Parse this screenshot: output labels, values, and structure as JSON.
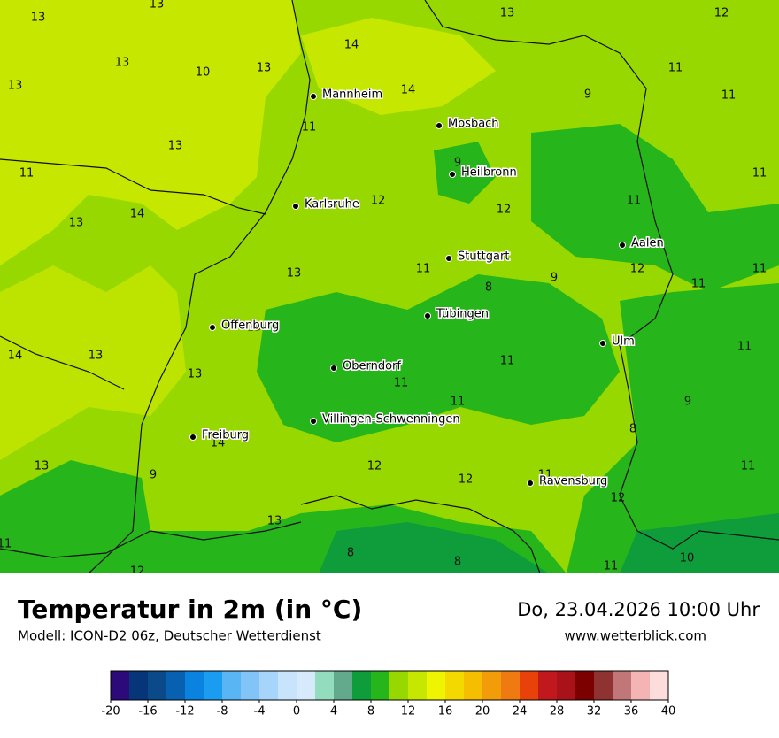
{
  "header": {
    "title": "Temperatur in 2m (in °C)",
    "model": "Modell: ICON-D2 06z, Deutscher Wetterdienst",
    "date": "Do, 23.04.2026 10:00 Uhr",
    "website": "www.wetterblick.com"
  },
  "map": {
    "cities": [
      "Mannheim",
      "Mosbach",
      "Heilbronn",
      "Karlsruhe",
      "Stuttgart",
      "Aalen",
      "Tübingen",
      "Offenburg",
      "Ulm",
      "Oberndorf",
      "Villingen-Schwenningen",
      "Freiburg",
      "Ravensburg"
    ],
    "values": [
      13,
      13,
      13,
      12,
      14,
      13,
      10,
      13,
      14,
      11,
      13,
      9,
      11,
      11,
      13,
      9,
      11,
      11,
      12,
      11,
      14,
      12,
      13,
      11,
      12,
      13,
      9,
      8,
      11,
      11,
      13,
      14,
      13,
      11,
      13,
      11,
      11,
      11,
      9,
      8,
      14,
      13,
      9,
      12,
      12,
      11,
      11,
      12,
      13,
      11,
      8,
      8,
      11,
      10,
      12
    ]
  },
  "colorbar": {
    "lim": [
      -20,
      40
    ],
    "ticks": [
      -20,
      -16,
      -12,
      -8,
      -4,
      0,
      4,
      8,
      12,
      16,
      20,
      24,
      28,
      32,
      36,
      40
    ],
    "colors": [
      "#2d0a7a",
      "#06357a",
      "#0a4a8a",
      "#0861b0",
      "#0a82e0",
      "#1a9cf0",
      "#5ab5f5",
      "#82c4f8",
      "#a6d4fa",
      "#c8e4fc",
      "#d6eafc",
      "#93dcbd",
      "#63a98c",
      "#0e9d3a",
      "#26b51b",
      "#97d800",
      "#c6e700",
      "#eff500",
      "#f3d900",
      "#f5be00",
      "#f29c0a",
      "#f07a12",
      "#e8420a",
      "#c0181c",
      "#a81218",
      "#7c0000",
      "#8e3232",
      "#c17777",
      "#f4b4b4",
      "#fddcdc"
    ]
  }
}
